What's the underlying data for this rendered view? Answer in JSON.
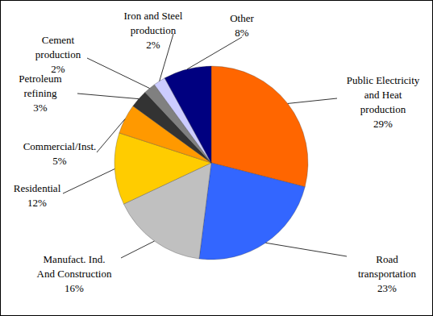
{
  "chart_data": {
    "type": "pie",
    "categories": [
      "Public Electricity\nand Heat\nproduction",
      "Road\ntransportation",
      "Manufact. Ind.\nAnd Construction",
      "Residential",
      "Commercial/Inst.",
      "Petroleum\nrefining",
      "Cement\nproduction",
      "Iron and Steel\nproduction",
      "Other"
    ],
    "values": [
      29,
      23,
      16,
      12,
      5,
      3,
      2,
      2,
      8
    ],
    "value_labels": [
      "29%",
      "23%",
      "16%",
      "12%",
      "5%",
      "3%",
      "2%",
      "2%",
      "8%"
    ],
    "colors": [
      "#ff6600",
      "#3366ff",
      "#c0c0c0",
      "#ffcc00",
      "#ff9900",
      "#333333",
      "#808080",
      "#ccccff",
      "#000080"
    ],
    "data_labels": true
  }
}
